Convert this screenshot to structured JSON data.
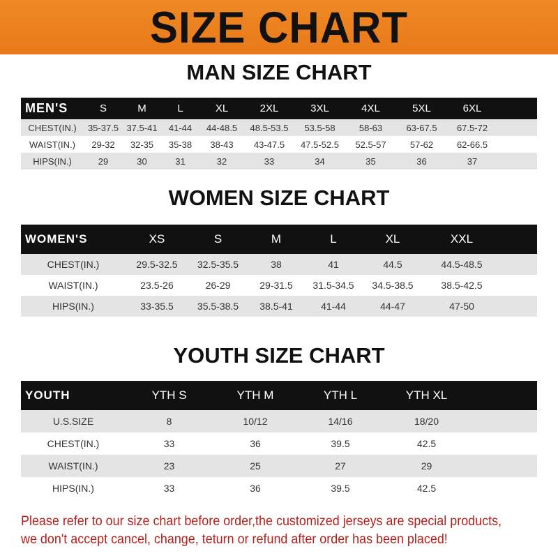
{
  "banner": "SIZE CHART",
  "men": {
    "title": "MAN SIZE CHART",
    "header": [
      "MEN'S",
      "S",
      "M",
      "L",
      "XL",
      "2XL",
      "3XL",
      "4XL",
      "5XL",
      "6XL"
    ],
    "rows": [
      [
        "CHEST(IN.)",
        "35-37.5",
        "37.5-41",
        "41-44",
        "44-48.5",
        "48.5-53.5",
        "53.5-58",
        "58-63",
        "63-67.5",
        "67.5-72"
      ],
      [
        "WAIST(IN.)",
        "29-32",
        "32-35",
        "35-38",
        "38-43",
        "43-47.5",
        "47.5-52.5",
        "52.5-57",
        "57-62",
        "62-66.5"
      ],
      [
        "HIPS(IN.)",
        "29",
        "30",
        "31",
        "32",
        "33",
        "34",
        "35",
        "36",
        "37"
      ]
    ]
  },
  "women": {
    "title": "WOMEN SIZE CHART",
    "header": [
      "WOMEN'S",
      "XS",
      "S",
      "M",
      "L",
      "XL",
      "XXL"
    ],
    "rows": [
      [
        "CHEST(IN.)",
        "29.5-32.5",
        "32.5-35.5",
        "38",
        "41",
        "44.5",
        "44.5-48.5"
      ],
      [
        "WAIST(IN.)",
        "23.5-26",
        "26-29",
        "29-31.5",
        "31.5-34.5",
        "34.5-38.5",
        "38.5-42.5"
      ],
      [
        "HIPS(IN.)",
        "33-35.5",
        "35.5-38.5",
        "38.5-41",
        "41-44",
        "44-47",
        "47-50"
      ]
    ]
  },
  "youth": {
    "title": "YOUTH SIZE CHART",
    "header": [
      "YOUTH",
      "YTH S",
      "YTH M",
      "YTH L",
      "YTH XL"
    ],
    "rows": [
      [
        "U.S.SIZE",
        "8",
        "10/12",
        "14/16",
        "18/20"
      ],
      [
        "CHEST(IN.)",
        "33",
        "36",
        "39.5",
        "42.5"
      ],
      [
        "WAIST(IN.)",
        "23",
        "25",
        "27",
        "29"
      ],
      [
        "HIPS(IN.)",
        "33",
        "36",
        "39.5",
        "42.5"
      ]
    ]
  },
  "note": "Please refer to our size chart before order,the customized jerseys are special products, we don't accept cancel, change, teturn or refund after order has been placed!",
  "colors": {
    "banner": "#f08a24",
    "header_row": "#111111",
    "note": "#b3201e",
    "stripe": "#e4e4e4"
  }
}
